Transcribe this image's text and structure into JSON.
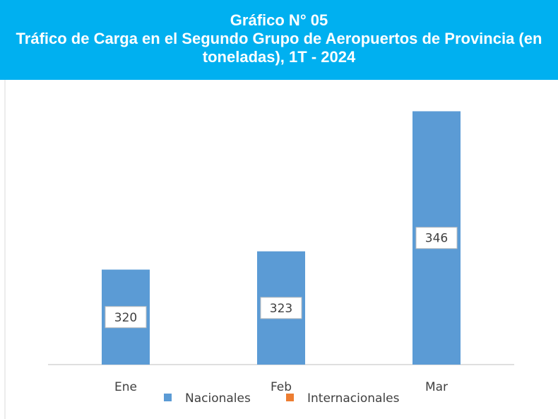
{
  "chart_data": {
    "type": "bar",
    "title": "Gráfico N° 05",
    "subtitle": "Tráfico de Carga en el Segundo Grupo de Aeropuertos de Provincia (en toneladas), 1T - 2024",
    "categories": [
      "Ene",
      "Feb",
      "Mar"
    ],
    "series": [
      {
        "name": "Nacionales",
        "color": "#5b9bd5",
        "values": [
          320,
          323,
          346
        ]
      },
      {
        "name": "Internacionales",
        "color": "#ed7d31",
        "values": [
          null,
          null,
          null
        ]
      }
    ],
    "ylim": [
      304.4,
      350
    ]
  }
}
